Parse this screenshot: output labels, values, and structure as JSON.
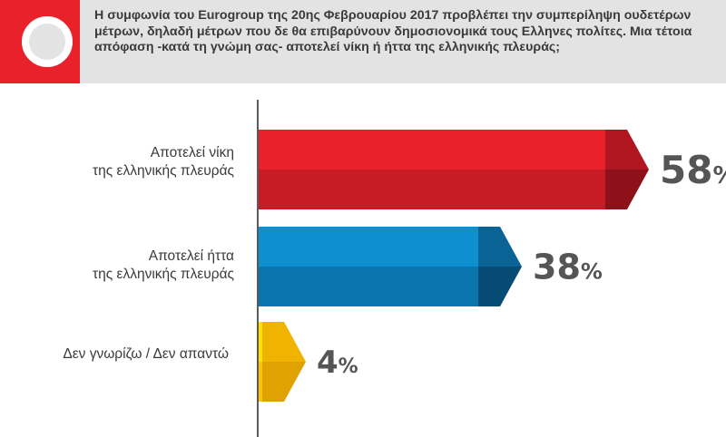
{
  "header": {
    "question": "Η συμφωνία του Eurogroup της 20ης Φεβρουαρίου 2017 προβλέπει την συμπερίληψη ουδετέρων μέτρων, δηλαδή μέτρων που δε θα επιβαρύνουν δημοσιονομικά τους Ελληνες πολίτες. Μια τέτοια απόφαση -κατά τη γνώμη σας- αποτελεί νίκη ή ήττα της ελληνικής πλευράς;"
  },
  "chart_data": {
    "type": "bar",
    "orientation": "horizontal",
    "categories": [
      "Αποτελεί νίκη\nτης ελληνικής πλευράς",
      "Αποτελεί ήττα\nτης ελληνικής πλευράς",
      "Δεν γνωρίζω / Δεν απαντώ"
    ],
    "values": [
      58,
      38,
      4
    ],
    "value_labels": [
      "58",
      "38",
      "4"
    ],
    "unit": "%",
    "colors": [
      {
        "top": "#e8212b",
        "bottom": "#c71c25",
        "tip_top": "#b0161f",
        "tip_bottom": "#8e111a"
      },
      {
        "top": "#0e8fcf",
        "bottom": "#0a76b0",
        "tip_top": "#0b6294",
        "tip_bottom": "#064b73"
      },
      {
        "top": "#ffe000",
        "bottom": "#ffc107",
        "tip_top": "#f0b400",
        "tip_bottom": "#e0a200"
      }
    ],
    "xlim": [
      0,
      100
    ],
    "grid": false,
    "legend": "none"
  }
}
